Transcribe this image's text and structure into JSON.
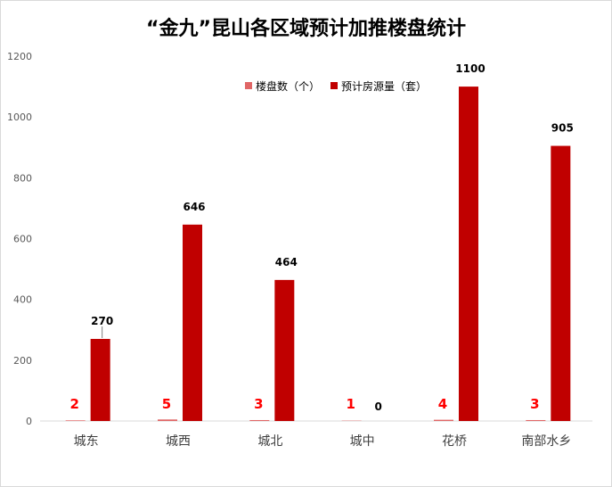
{
  "chart_data": {
    "type": "bar",
    "title": "“金九”昆山各区域预计加推楼盘统计",
    "categories": [
      "城东",
      "城西",
      "城北",
      "城中",
      "花桥",
      "南部水乡"
    ],
    "series": [
      {
        "name": "楼盘数（个）",
        "values": [
          2,
          5,
          3,
          1,
          4,
          3
        ],
        "color": "#e06666",
        "label_color": "#ff0000"
      },
      {
        "name": "预计房源量（套）",
        "values": [
          270,
          646,
          464,
          0,
          1100,
          905
        ],
        "color": "#c00000",
        "label_color": "#000000"
      }
    ],
    "ylim": [
      0,
      1200
    ],
    "yticks": [
      0,
      200,
      400,
      600,
      800,
      1000,
      1200
    ],
    "ytick_labels": [
      "0",
      "200",
      "400",
      "600",
      "800",
      "1000",
      "1200"
    ],
    "grid": false,
    "legend_position": "top-center"
  }
}
